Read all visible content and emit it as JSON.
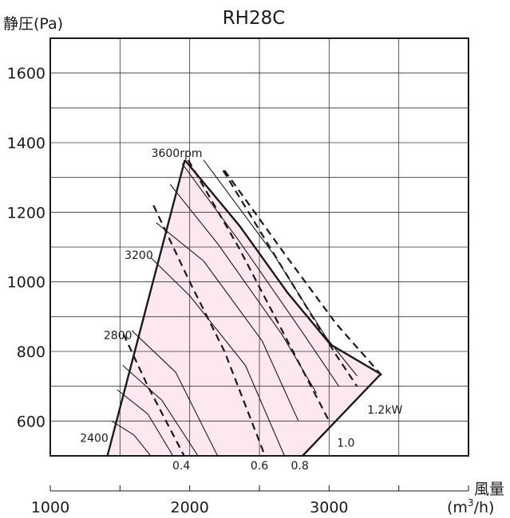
{
  "chart_data": {
    "type": "line",
    "title": "RH28C",
    "ylabel": "静圧(Pa)",
    "xlabel_main": "風量",
    "xlabel_unit_prefix": "(m",
    "xlabel_unit_sup": "3",
    "xlabel_unit_suffix": "/h)",
    "xlim": [
      1000,
      4000
    ],
    "ylim": [
      500,
      1700
    ],
    "x_ticks": [
      1000,
      2000,
      3000
    ],
    "x_tick_labels": [
      "1000",
      "2000",
      "3000"
    ],
    "x_minor_ticks": [
      1500,
      2500,
      3500,
      4000
    ],
    "y_ticks": [
      600,
      800,
      1000,
      1200,
      1400,
      1600
    ],
    "y_tick_labels": [
      "600",
      "800",
      "1000",
      "1200",
      "1400",
      "1600"
    ],
    "grid": true,
    "colors": {
      "region_fill": "#fde8ef",
      "line": "#1a1a1a",
      "grid": "#333333"
    },
    "operating_region": [
      [
        1410,
        500
      ],
      [
        1965,
        1350
      ],
      [
        2360,
        1160
      ],
      [
        2700,
        970
      ],
      [
        3010,
        820
      ],
      [
        3370,
        735
      ],
      [
        2810,
        500
      ]
    ],
    "region_points": [
      {
        "name": "left-rpm-boundary",
        "points": [
          [
            1410,
            500
          ],
          [
            1965,
            1350
          ]
        ]
      },
      {
        "name": "right-boundary",
        "points": [
          [
            1965,
            1350
          ],
          [
            2360,
            1160
          ],
          [
            2700,
            970
          ],
          [
            3010,
            820
          ],
          [
            3370,
            735
          ]
        ]
      },
      {
        "name": "bottom-boundary",
        "points": [
          [
            3370,
            735
          ],
          [
            2810,
            500
          ]
        ]
      }
    ],
    "rpm_labels": [
      {
        "text": "2400",
        "x": 1440,
        "y": 545
      },
      {
        "text": "2800",
        "x": 1610,
        "y": 840
      },
      {
        "text": "3200",
        "x": 1760,
        "y": 1070
      },
      {
        "text": "3600rpm",
        "x": 1965,
        "y": 1350
      }
    ],
    "power_lines": [
      {
        "label": "0.4",
        "points": [
          [
            1525,
            850
          ],
          [
            1700,
            700
          ],
          [
            1960,
            500
          ]
        ]
      },
      {
        "label": "0.6",
        "points": [
          [
            1740,
            1220
          ],
          [
            2000,
            1000
          ],
          [
            2250,
            800
          ],
          [
            2540,
            500
          ]
        ]
      },
      {
        "label": "0.8",
        "points": [
          [
            1990,
            1350
          ],
          [
            2350,
            1100
          ],
          [
            2650,
            870
          ],
          [
            3000,
            600
          ]
        ]
      },
      {
        "label": "1.0",
        "points": [
          [
            2240,
            1320
          ],
          [
            2650,
            1050
          ],
          [
            3050,
            790
          ],
          [
            3200,
            700
          ]
        ]
      },
      {
        "label": "1.2kW",
        "points": [
          [
            2250,
            1320
          ],
          [
            2700,
            1070
          ],
          [
            3050,
            880
          ],
          [
            3380,
            730
          ]
        ]
      }
    ],
    "power_labels": [
      {
        "text": "0.4",
        "x": 1940,
        "y": 500
      },
      {
        "text": "0.6",
        "x": 2500,
        "y": 500
      },
      {
        "text": "0.8",
        "x": 2790,
        "y": 500
      },
      {
        "text": "1.0",
        "x": 3120,
        "y": 565
      },
      {
        "text": "1.2kW",
        "x": 3400,
        "y": 660
      }
    ],
    "resistance_curves": [
      {
        "points": [
          [
            1440,
            600
          ],
          [
            1600,
            560
          ],
          [
            1720,
            500
          ]
        ]
      },
      {
        "points": [
          [
            1480,
            690
          ],
          [
            1700,
            620
          ],
          [
            1880,
            500
          ]
        ]
      },
      {
        "points": [
          [
            1520,
            760
          ],
          [
            1800,
            660
          ],
          [
            2060,
            500
          ]
        ]
      },
      {
        "points": [
          [
            1585,
            860
          ],
          [
            1900,
            740
          ],
          [
            2200,
            500
          ]
        ]
      },
      {
        "points": [
          [
            1720,
            1070
          ],
          [
            2000,
            960
          ],
          [
            2400,
            760
          ],
          [
            2680,
            500
          ]
        ]
      },
      {
        "points": [
          [
            1760,
            1170
          ],
          [
            2100,
            1060
          ],
          [
            2520,
            830
          ],
          [
            2780,
            600
          ]
        ]
      },
      {
        "points": [
          [
            1860,
            1280
          ],
          [
            2200,
            1110
          ],
          [
            2660,
            850
          ],
          [
            2910,
            680
          ]
        ]
      },
      {
        "points": [
          [
            1945,
            1340
          ],
          [
            2350,
            1120
          ],
          [
            2800,
            860
          ],
          [
            3070,
            700
          ]
        ]
      },
      {
        "points": [
          [
            2100,
            1350
          ],
          [
            2600,
            1080
          ],
          [
            2980,
            840
          ],
          [
            3200,
            730
          ]
        ]
      }
    ]
  }
}
